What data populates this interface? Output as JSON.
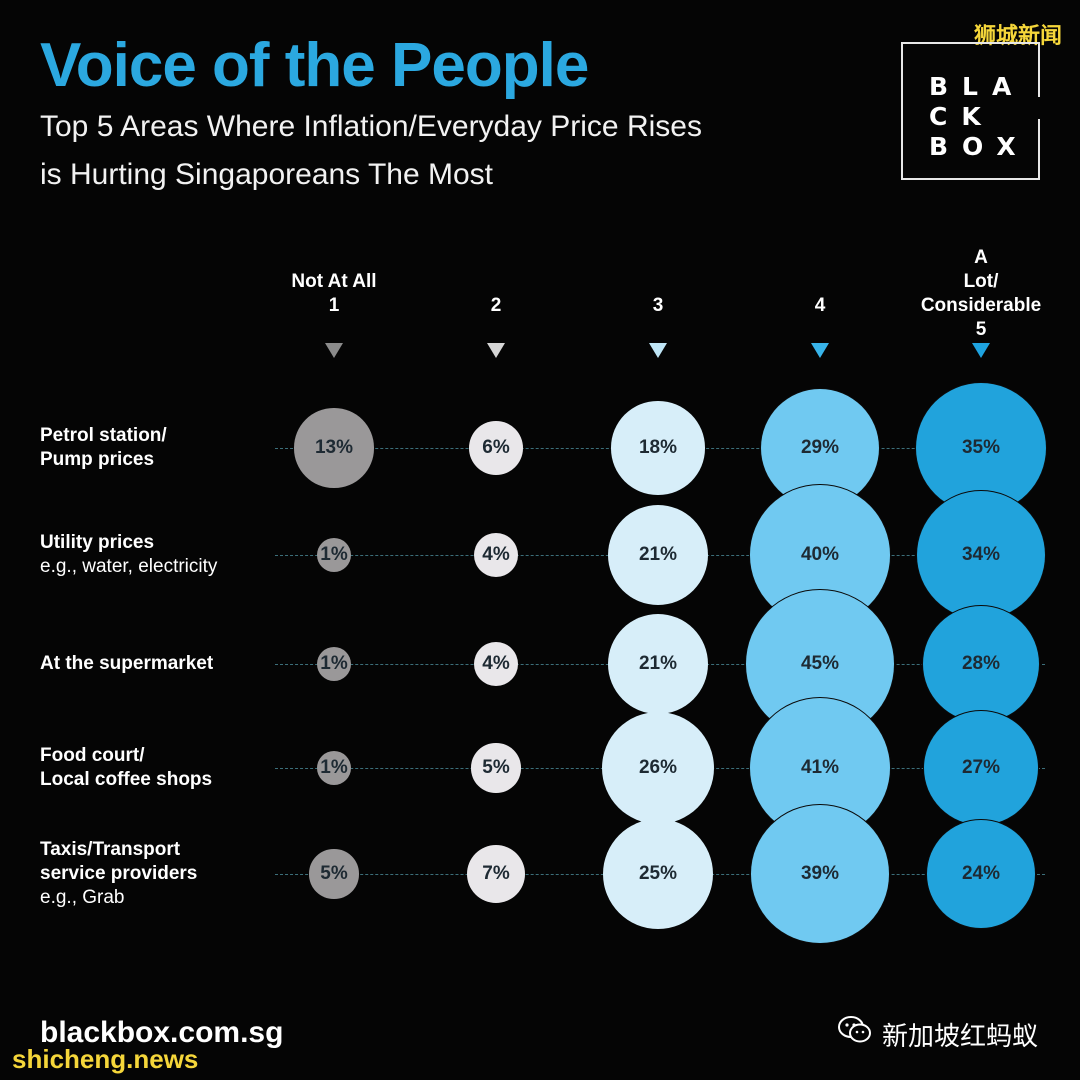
{
  "header": {
    "title": "Voice of the People",
    "subtitle_line1": "Top 5 Areas Where Inflation/Everyday Price Rises",
    "subtitle_line2": "is Hurting Singaporeans The Most"
  },
  "logo": {
    "row1": "BLA",
    "row2": "CK",
    "row3": "BOX"
  },
  "watermark_top": "狮城新闻",
  "footer": {
    "website": "blackbox.com.sg",
    "watermark_bottom": "shicheng.news",
    "wechat_account": "新加坡红蚂蚁"
  },
  "colors": {
    "title": "#2ba8e0",
    "scale": [
      "#9a9899",
      "#e9e7ea",
      "#d7eef9",
      "#70c9f1",
      "#21a3dc"
    ],
    "arrows": [
      "#8b8b8b",
      "#d6d6d6",
      "#bfe6f7",
      "#38b4ea",
      "#1ea3e0"
    ]
  },
  "chart_data": {
    "type": "bubble-matrix",
    "title": "Top 5 Areas Where Inflation/Everyday Price Rises is Hurting Singaporeans The Most",
    "scale": [
      {
        "value": "1",
        "label": "Not At All"
      },
      {
        "value": "2",
        "label": ""
      },
      {
        "value": "3",
        "label": ""
      },
      {
        "value": "4",
        "label": ""
      },
      {
        "value": "5",
        "label": "A Lot/ Considerable"
      }
    ],
    "categories": [
      {
        "name": "Petrol station/ Pump prices",
        "label_lines": [
          "Petrol station/",
          "Pump prices"
        ],
        "note": "",
        "values": [
          13,
          6,
          18,
          29,
          35
        ]
      },
      {
        "name": "Utility prices",
        "label_lines": [
          "Utility prices"
        ],
        "note": "e.g., water, electricity",
        "values": [
          1,
          4,
          21,
          40,
          34
        ]
      },
      {
        "name": "At the supermarket",
        "label_lines": [
          "At the supermarket"
        ],
        "note": "",
        "values": [
          1,
          4,
          21,
          45,
          28
        ]
      },
      {
        "name": "Food court/ Local coffee shops",
        "label_lines": [
          "Food court/",
          "Local coffee shops"
        ],
        "note": "",
        "values": [
          1,
          5,
          26,
          41,
          27
        ]
      },
      {
        "name": "Taxis/Transport service providers",
        "label_lines": [
          "Taxis/Transport",
          "service providers"
        ],
        "note": "e.g., Grab",
        "values": [
          5,
          7,
          25,
          39,
          24
        ]
      }
    ],
    "unit": "%"
  }
}
